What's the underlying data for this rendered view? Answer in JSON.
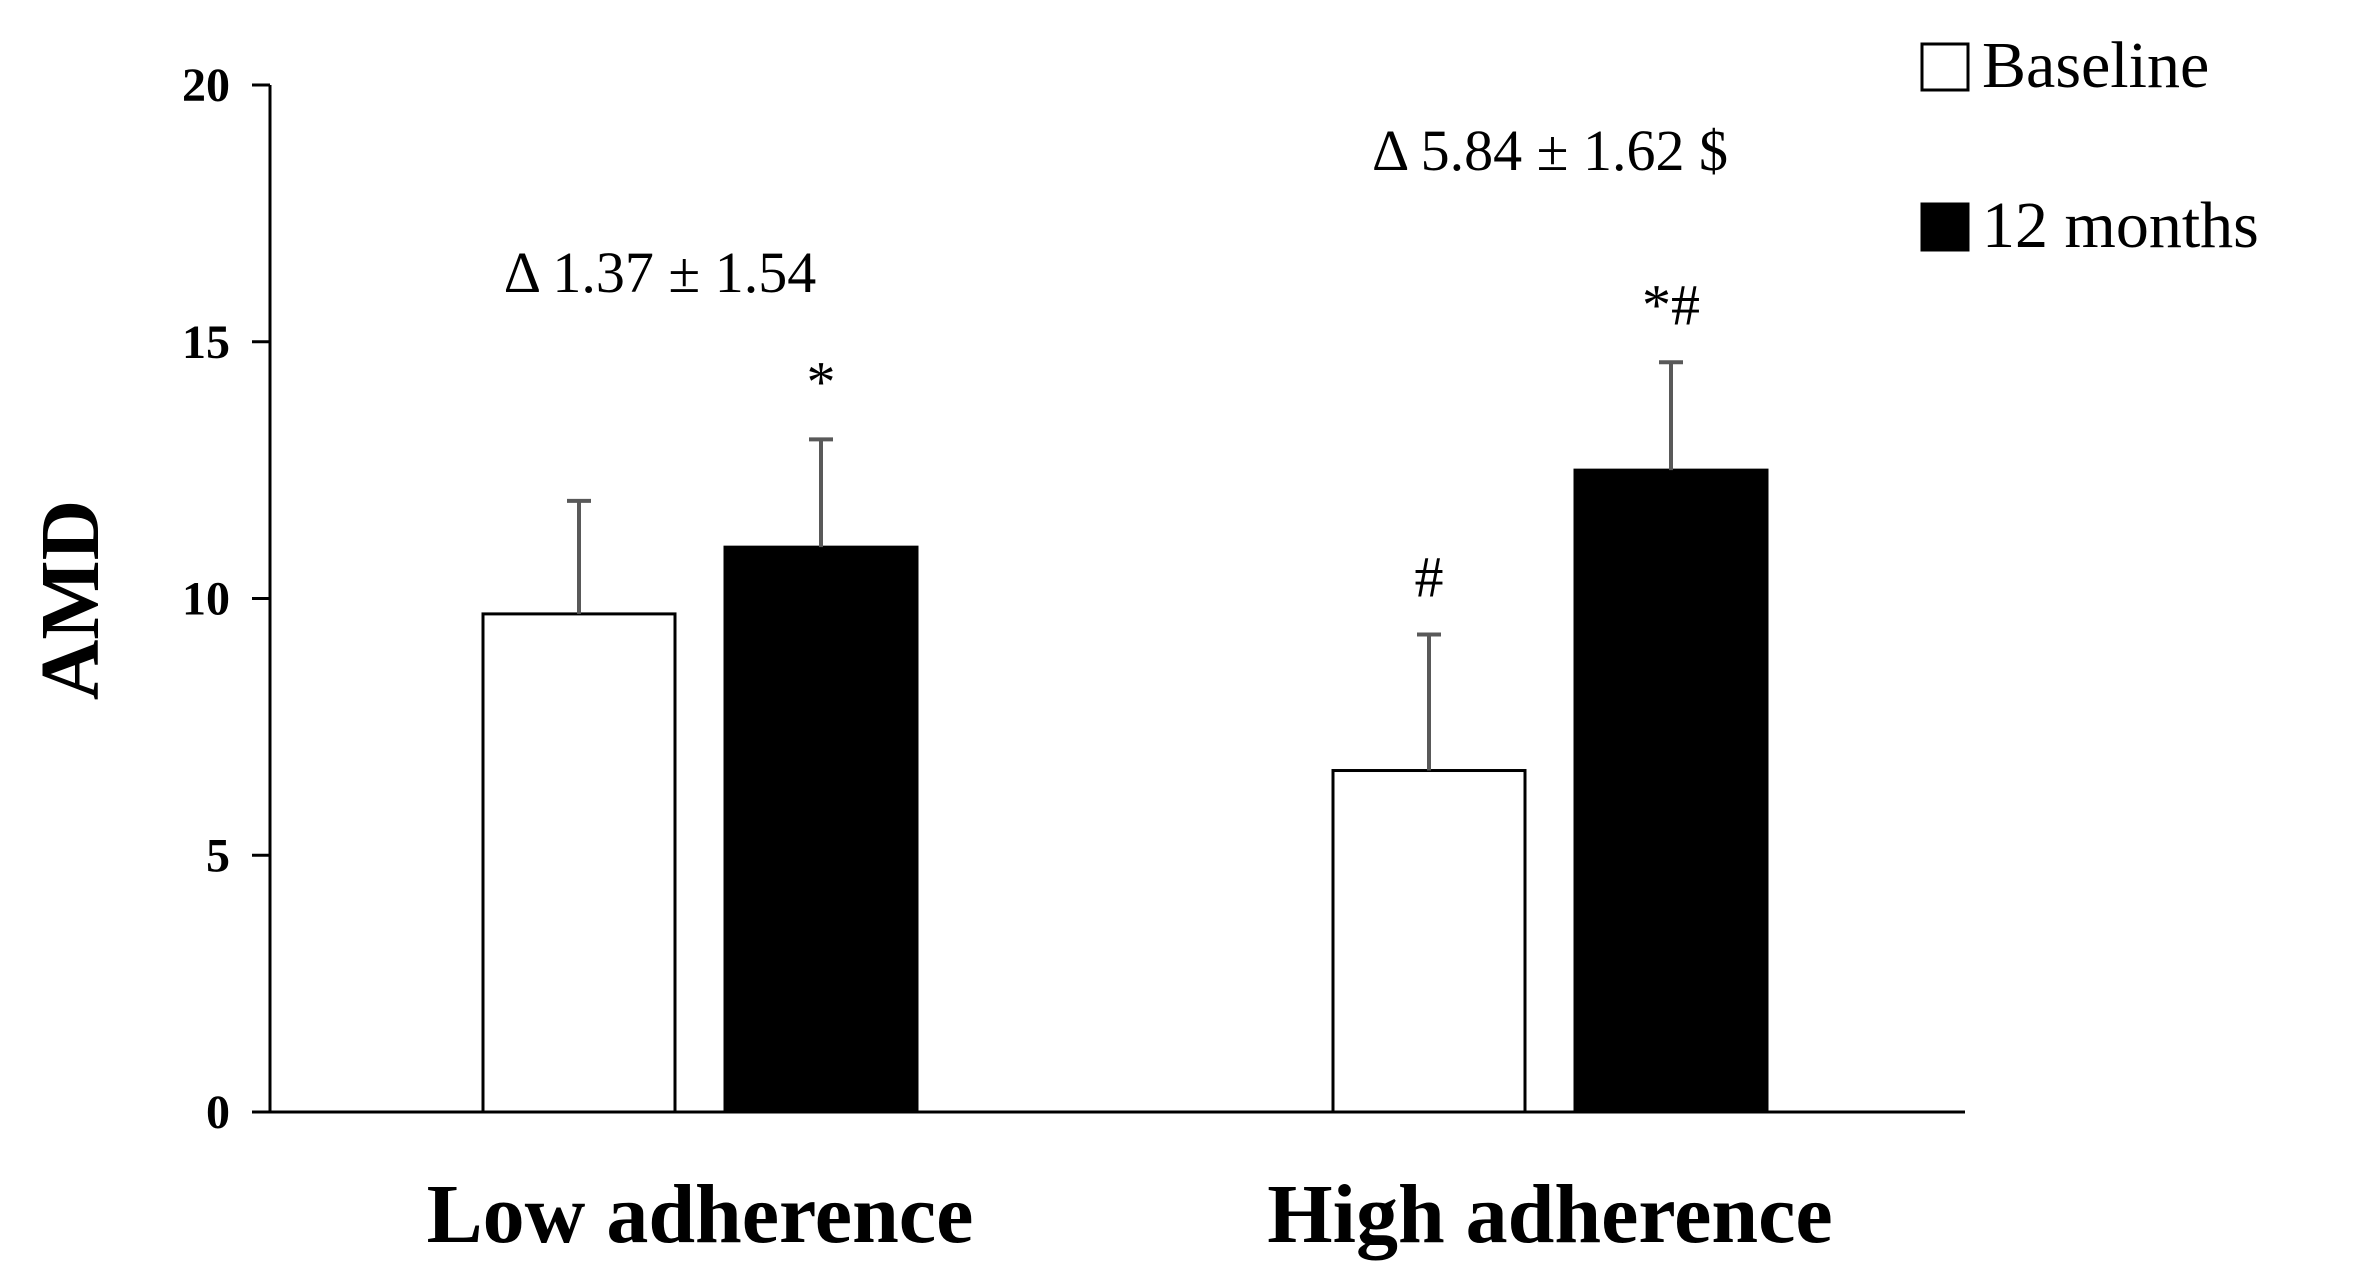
{
  "chart_data": {
    "type": "bar",
    "title": "",
    "xlabel": "",
    "ylabel": "AMD",
    "ylim": [
      0,
      20
    ],
    "yticks": [
      0,
      5,
      10,
      15,
      20
    ],
    "categories": [
      "Low adherence",
      "High adherence"
    ],
    "series": [
      {
        "name": "Baseline",
        "color": "#ffffff",
        "values": [
          9.7,
          6.65
        ],
        "errors": [
          2.2,
          2.65
        ],
        "sig_marks": [
          "",
          "#"
        ]
      },
      {
        "name": "12 months",
        "color": "#000000",
        "values": [
          11.0,
          12.5
        ],
        "errors": [
          2.1,
          2.1
        ],
        "sig_marks": [
          "*",
          "*#"
        ]
      }
    ],
    "delta_annotations": [
      "Δ 1.37 ± 1.54",
      "Δ 5.84 ± 1.62 $"
    ],
    "legend_position": "top-right",
    "grid": false
  }
}
